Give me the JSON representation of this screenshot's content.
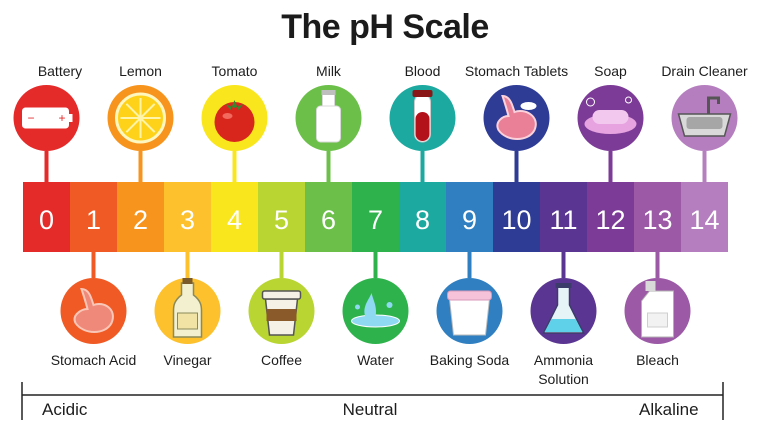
{
  "title": "The pH Scale",
  "scale_labels": {
    "acidic": "Acidic",
    "neutral": "Neutral",
    "alkaline": "Alkaline"
  },
  "levels": [
    {
      "ph": "0",
      "color": "#e52a2a"
    },
    {
      "ph": "1",
      "color": "#f05a24"
    },
    {
      "ph": "2",
      "color": "#f7941d"
    },
    {
      "ph": "3",
      "color": "#fcc12c"
    },
    {
      "ph": "4",
      "color": "#f9e61d"
    },
    {
      "ph": "5",
      "color": "#b8d531"
    },
    {
      "ph": "6",
      "color": "#6cc04a"
    },
    {
      "ph": "7",
      "color": "#2eb34c"
    },
    {
      "ph": "8",
      "color": "#1ba9a0"
    },
    {
      "ph": "9",
      "color": "#2f7fc1"
    },
    {
      "ph": "10",
      "color": "#2e3c96"
    },
    {
      "ph": "11",
      "color": "#5b3592"
    },
    {
      "ph": "12",
      "color": "#7c3b97"
    },
    {
      "ph": "13",
      "color": "#9b59a6"
    },
    {
      "ph": "14",
      "color": "#b57fbf"
    }
  ],
  "substances": [
    {
      "name": "Battery",
      "ph": 0,
      "position": "top",
      "icon": "battery-icon"
    },
    {
      "name": "Stomach Acid",
      "ph": 1,
      "position": "bottom",
      "icon": "stomach-icon"
    },
    {
      "name": "Lemon",
      "ph": 2,
      "position": "top",
      "icon": "lemon-icon"
    },
    {
      "name": "Vinegar",
      "ph": 3,
      "position": "bottom",
      "icon": "vinegar-bottle-icon"
    },
    {
      "name": "Tomato",
      "ph": 4,
      "position": "top",
      "icon": "tomato-icon"
    },
    {
      "name": "Coffee",
      "ph": 5,
      "position": "bottom",
      "icon": "coffee-cup-icon"
    },
    {
      "name": "Milk",
      "ph": 6,
      "position": "top",
      "icon": "milk-bottle-icon"
    },
    {
      "name": "Water",
      "ph": 7,
      "position": "bottom",
      "icon": "water-splash-icon"
    },
    {
      "name": "Blood",
      "ph": 8,
      "position": "top",
      "icon": "blood-tube-icon"
    },
    {
      "name": "Baking Soda",
      "ph": 9,
      "position": "bottom",
      "icon": "baking-soda-cup-icon"
    },
    {
      "name": "Stomach Tablets",
      "ph": 10,
      "position": "top",
      "icon": "stomach-tablets-icon"
    },
    {
      "name": "Ammonia Solution",
      "ph": 11,
      "position": "bottom",
      "icon": "flask-icon"
    },
    {
      "name": "Soap",
      "ph": 12,
      "position": "top",
      "icon": "soap-icon"
    },
    {
      "name": "Bleach",
      "ph": 13,
      "position": "bottom",
      "icon": "bleach-jug-icon"
    },
    {
      "name": "Drain Cleaner",
      "ph": 14,
      "position": "top",
      "icon": "sink-icon"
    }
  ]
}
